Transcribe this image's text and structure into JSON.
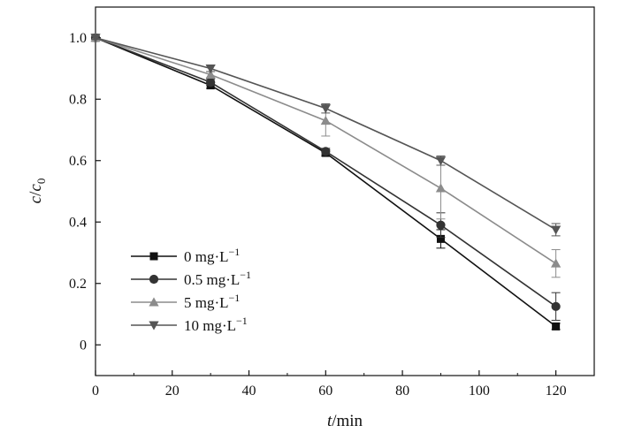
{
  "chart_data": {
    "type": "line",
    "title": "",
    "xlabel": {
      "var": "t",
      "rest": "/min"
    },
    "ylabel": {
      "c": "c",
      "slash": "/",
      "c0": "c",
      "sub": "0"
    },
    "xlim": [
      0,
      130
    ],
    "ylim": [
      -0.1,
      1.1
    ],
    "xticks": [
      0,
      20,
      40,
      60,
      80,
      100,
      120
    ],
    "yticks": [
      0,
      0.2,
      0.4,
      0.6,
      0.8,
      1.0
    ],
    "xtick_labels": [
      "0",
      "20",
      "40",
      "60",
      "80",
      "100",
      "120"
    ],
    "ytick_labels": [
      "0",
      "0.2",
      "0.4",
      "0.6",
      "0.8",
      "1.0"
    ],
    "grid": false,
    "legend_position": "bottom-left",
    "x": [
      0,
      30,
      60,
      90,
      120
    ],
    "series": [
      {
        "name": "0 mg·L",
        "sup": "−1",
        "marker": "square",
        "color": "#111111",
        "values": [
          1.0,
          0.845,
          0.625,
          0.345,
          0.06
        ],
        "errors": [
          0.005,
          0.01,
          0.01,
          0.03,
          0.01
        ]
      },
      {
        "name": "0.5 mg·L",
        "sup": "−1",
        "marker": "circle",
        "color": "#333333",
        "values": [
          1.0,
          0.855,
          0.63,
          0.39,
          0.125
        ],
        "errors": [
          0.005,
          0.01,
          0.01,
          0.04,
          0.045
        ]
      },
      {
        "name": "5 mg·L",
        "sup": "−1",
        "marker": "triangle-up",
        "color": "#8c8c8c",
        "values": [
          1.0,
          0.88,
          0.73,
          0.51,
          0.265
        ],
        "errors": [
          0.005,
          0.01,
          0.05,
          0.1,
          0.045
        ]
      },
      {
        "name": "10 mg·L",
        "sup": "−1",
        "marker": "triangle-down",
        "color": "#555555",
        "values": [
          1.0,
          0.9,
          0.77,
          0.6,
          0.375
        ],
        "errors": [
          0.005,
          0.01,
          0.015,
          0.015,
          0.02
        ]
      }
    ]
  }
}
